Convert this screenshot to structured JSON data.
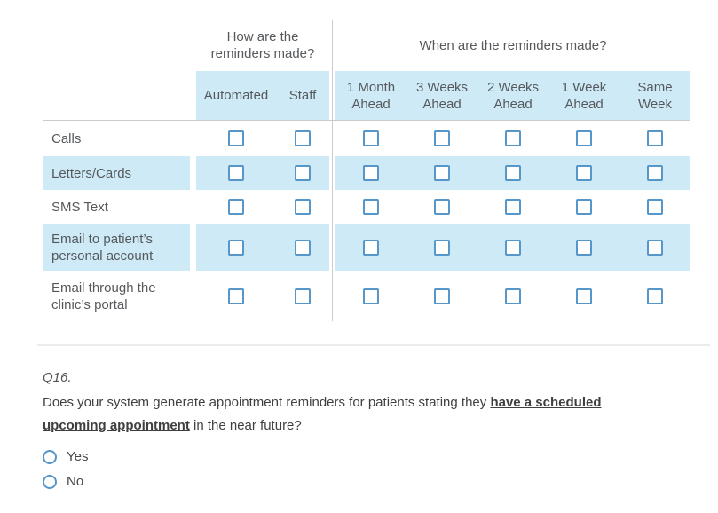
{
  "table": {
    "groups": [
      {
        "title": "How are the reminders made?",
        "columns": [
          {
            "id": "automated",
            "label": "Automated"
          },
          {
            "id": "staff",
            "label": "Staff"
          }
        ]
      },
      {
        "title": "When are the reminders made?",
        "columns": [
          {
            "id": "1-month-ahead",
            "label": "1 Month Ahead"
          },
          {
            "id": "3-weeks-ahead",
            "label": "3 Weeks Ahead"
          },
          {
            "id": "2-weeks-ahead",
            "label": "2 Weeks Ahead"
          },
          {
            "id": "1-week-ahead",
            "label": "1 Week Ahead"
          },
          {
            "id": "same-week",
            "label": "Same Week"
          }
        ]
      }
    ],
    "rows": [
      {
        "id": "calls",
        "label": "Calls"
      },
      {
        "id": "letters-cards",
        "label": "Letters/Cards"
      },
      {
        "id": "sms-text",
        "label": "SMS Text"
      },
      {
        "id": "email-personal",
        "label": "Email to patient’s personal account"
      },
      {
        "id": "email-portal",
        "label": "Email through the clinic’s portal"
      }
    ],
    "checkboxes_checked": []
  },
  "question": {
    "number": "Q16.",
    "text_before": "Does your system generate appointment reminders for patients stating they ",
    "emphasis": "have a scheduled upcoming appointment",
    "text_after": " in the near future?",
    "options": [
      {
        "id": "yes",
        "label": "Yes",
        "selected": false
      },
      {
        "id": "no",
        "label": "No",
        "selected": false
      }
    ]
  },
  "colors": {
    "stripe_blue": "#cdeaf6",
    "control_blue": "#5696c8",
    "divider_gray": "#cbcbcd",
    "table_text": "#56595c",
    "question_text": "#3f3f3f",
    "separator_gray": "#ececec"
  }
}
